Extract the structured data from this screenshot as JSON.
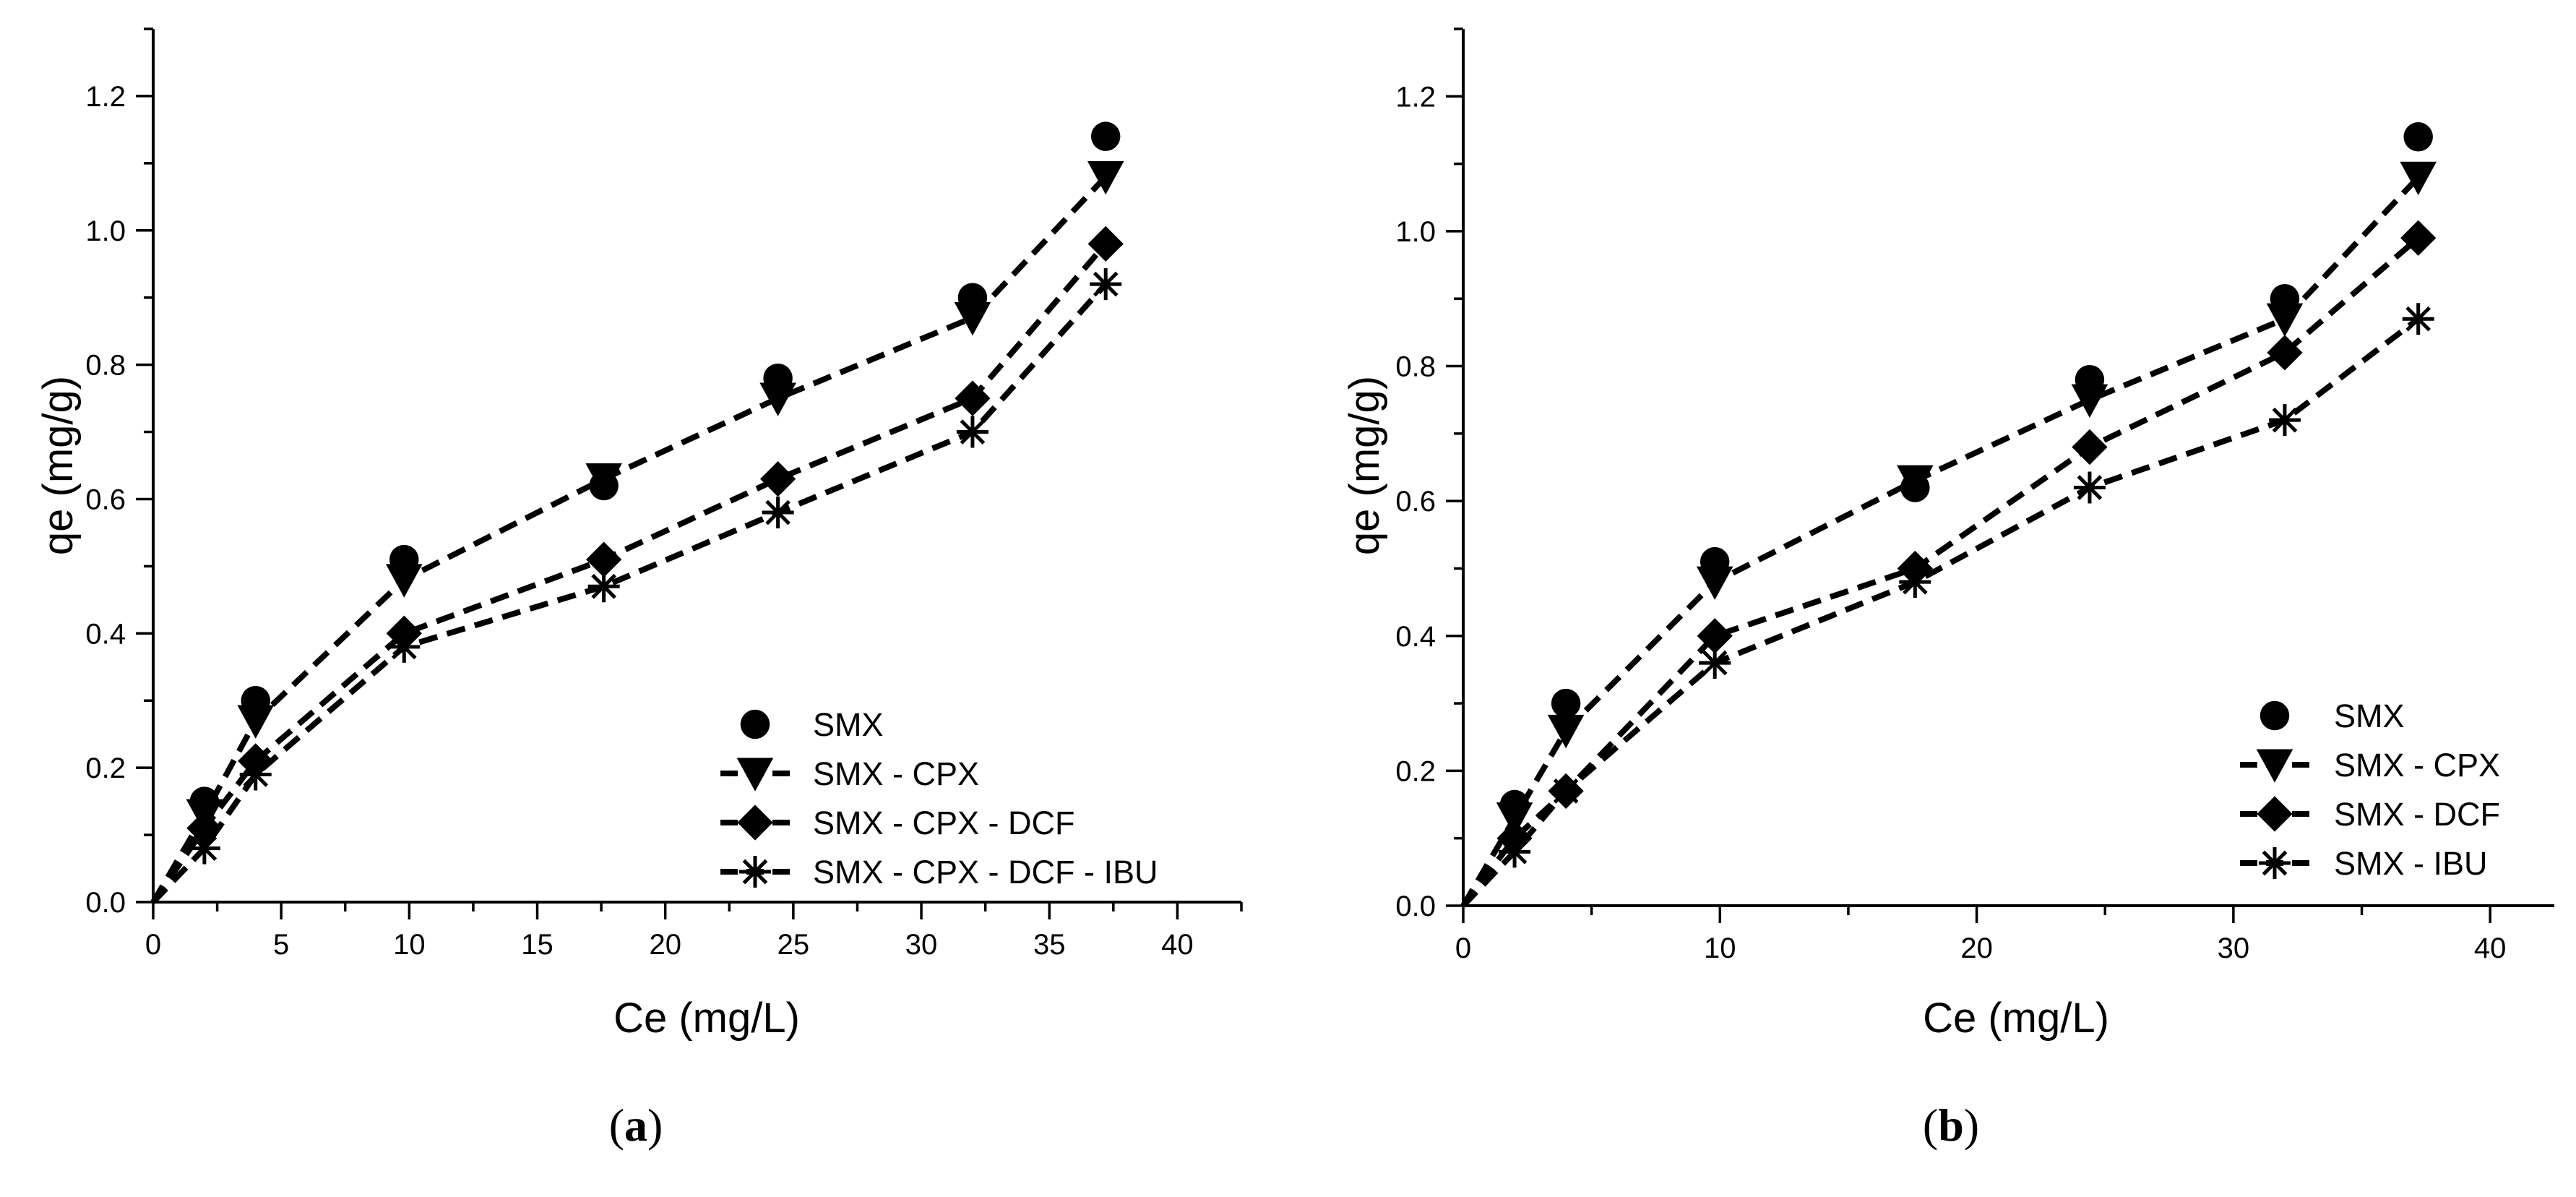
{
  "chart_data": [
    {
      "type": "line",
      "panel_label": "a",
      "xlabel": "Ce (mg/L)",
      "ylabel": "qe (mg/g)",
      "xlim": [
        0,
        42.5
      ],
      "ylim": [
        0,
        1.3
      ],
      "xticks": [
        0,
        5,
        10,
        15,
        20,
        25,
        30,
        35,
        40
      ],
      "yticks": [
        0.0,
        0.2,
        0.4,
        0.6,
        0.8,
        1.0,
        1.2
      ],
      "xtick_labels": [
        "0",
        "5",
        "10",
        "15",
        "20",
        "25",
        "30",
        "35",
        "40"
      ],
      "ytick_labels": [
        "0.0",
        "0.2",
        "0.4",
        "0.6",
        "0.8",
        "1.0",
        "1.2"
      ],
      "legend_position": "bottom-right",
      "series": [
        {
          "name": "SMX",
          "marker": "circle",
          "line": false,
          "x": [
            0,
            2,
            4,
            9.8,
            17.6,
            24.4,
            32,
            37.2
          ],
          "y": [
            0,
            0.15,
            0.3,
            0.51,
            0.62,
            0.78,
            0.9,
            1.14
          ]
        },
        {
          "name": "SMX - CPX",
          "marker": "triangle-down",
          "line": true,
          "x": [
            0,
            2,
            4,
            9.8,
            17.6,
            24.4,
            32,
            37.2
          ],
          "y": [
            0,
            0.13,
            0.27,
            0.48,
            0.63,
            0.75,
            0.87,
            1.08
          ]
        },
        {
          "name": "SMX - CPX - DCF",
          "marker": "diamond",
          "line": true,
          "x": [
            0,
            2,
            4,
            9.8,
            17.6,
            24.4,
            32,
            37.2
          ],
          "y": [
            0,
            0.11,
            0.21,
            0.4,
            0.51,
            0.63,
            0.75,
            0.98
          ]
        },
        {
          "name": "SMX - CPX - DCF - IBU",
          "marker": "asterisk",
          "line": true,
          "x": [
            0,
            2,
            4,
            9.8,
            17.6,
            24.4,
            32,
            37.2
          ],
          "y": [
            0,
            0.08,
            0.19,
            0.38,
            0.47,
            0.58,
            0.7,
            0.92
          ]
        }
      ]
    },
    {
      "type": "line",
      "panel_label": "b",
      "xlabel": "Ce (mg/L)",
      "ylabel": "qe (mg/g)",
      "xlim": [
        0,
        42.5
      ],
      "ylim": [
        0,
        1.3
      ],
      "xticks": [
        0,
        10,
        20,
        30,
        40
      ],
      "yticks": [
        0.0,
        0.2,
        0.4,
        0.6,
        0.8,
        1.0,
        1.2
      ],
      "xtick_labels": [
        "0",
        "10",
        "20",
        "30",
        "40"
      ],
      "ytick_labels": [
        "0.0",
        "0.2",
        "0.4",
        "0.6",
        "0.8",
        "1.0",
        "1.2"
      ],
      "legend_position": "bottom-right",
      "series": [
        {
          "name": "SMX",
          "marker": "circle",
          "line": false,
          "x": [
            0,
            2,
            4,
            9.8,
            17.6,
            24.4,
            32,
            37.2
          ],
          "y": [
            0,
            0.15,
            0.3,
            0.51,
            0.62,
            0.78,
            0.9,
            1.14
          ]
        },
        {
          "name": "SMX - CPX",
          "marker": "triangle-down",
          "line": true,
          "x": [
            0,
            2,
            4,
            9.8,
            17.6,
            24.4,
            32,
            37.2
          ],
          "y": [
            0,
            0.13,
            0.26,
            0.48,
            0.63,
            0.75,
            0.87,
            1.08
          ]
        },
        {
          "name": "SMX - DCF",
          "marker": "diamond",
          "line": true,
          "x": [
            0,
            2,
            4,
            9.8,
            17.6,
            24.4,
            32,
            37.2
          ],
          "y": [
            0,
            0.1,
            0.17,
            0.4,
            0.5,
            0.68,
            0.82,
            0.99
          ]
        },
        {
          "name": "SMX - IBU",
          "marker": "asterisk",
          "line": true,
          "x": [
            0,
            2,
            4,
            9.8,
            17.6,
            24.4,
            32,
            37.2
          ],
          "y": [
            0,
            0.08,
            0.17,
            0.36,
            0.48,
            0.62,
            0.72,
            0.87
          ]
        }
      ]
    }
  ]
}
